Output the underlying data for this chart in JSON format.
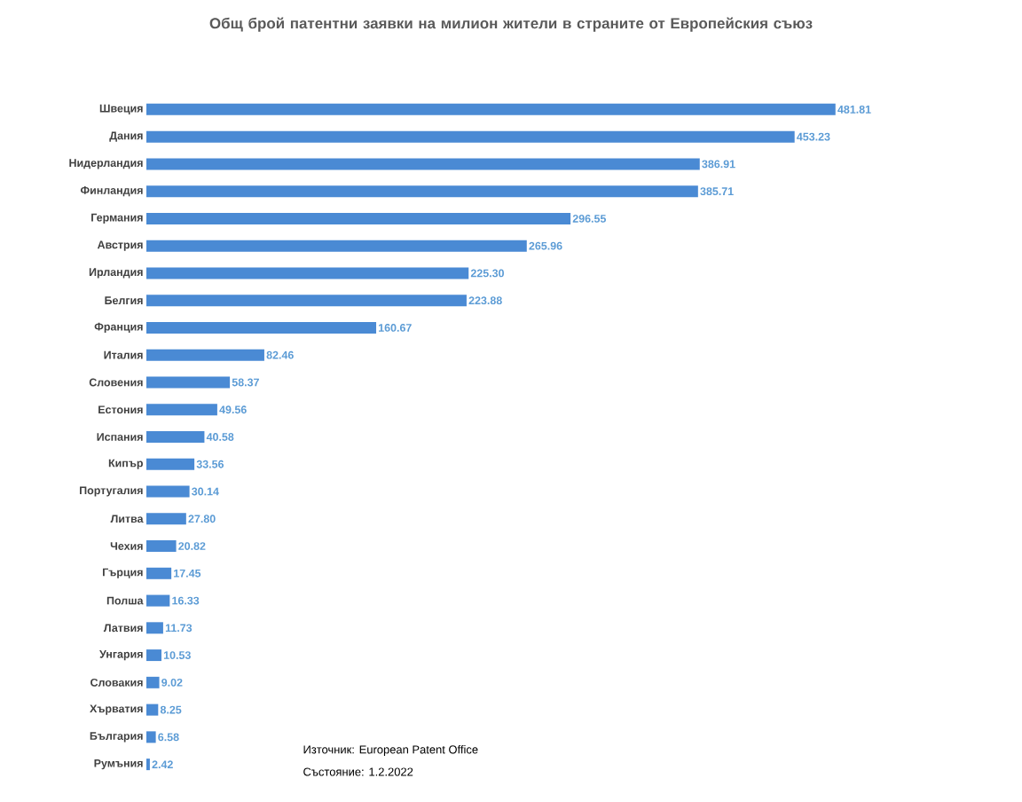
{
  "chart_data": {
    "type": "bar",
    "orientation": "horizontal",
    "title": "Общ брой патентни заявки на милион жители в страните от Европейския съюз",
    "categories": [
      "Швеция",
      "Дания",
      "Нидерландия",
      "Финландия",
      "Германия",
      "Австрия",
      "Ирландия",
      "Белгия",
      "Франция",
      "Италия",
      "Словения",
      "Естония",
      "Испания",
      "Кипър",
      "Португалия",
      "Литва",
      "Чехия",
      "Гърция",
      "Полша",
      "Латвия",
      "Унгария",
      "Словакия",
      "Хърватия",
      "България",
      "Румъния"
    ],
    "values": [
      481.81,
      453.23,
      386.91,
      385.71,
      296.55,
      265.96,
      225.3,
      223.88,
      160.67,
      82.46,
      58.37,
      49.56,
      40.58,
      33.56,
      30.14,
      27.8,
      20.82,
      17.45,
      16.33,
      11.73,
      10.53,
      9.02,
      8.25,
      6.58,
      2.42
    ],
    "value_labels": [
      "481.81",
      "453.23",
      "386.91",
      "385.71",
      "296.55",
      "265.96",
      "225.30",
      "223.88",
      "160.67",
      "82.46",
      "58.37",
      "49.56",
      "40.58",
      "33.56",
      "30.14",
      "27.80",
      "20.82",
      "17.45",
      "16.33",
      "11.73",
      "10.53",
      "9.02",
      "8.25",
      "6.58",
      "2.42"
    ],
    "color": "#4a8ad4",
    "annotations": [
      "Източник: European Patent Office",
      "Състояние: 1.2.2022"
    ]
  }
}
